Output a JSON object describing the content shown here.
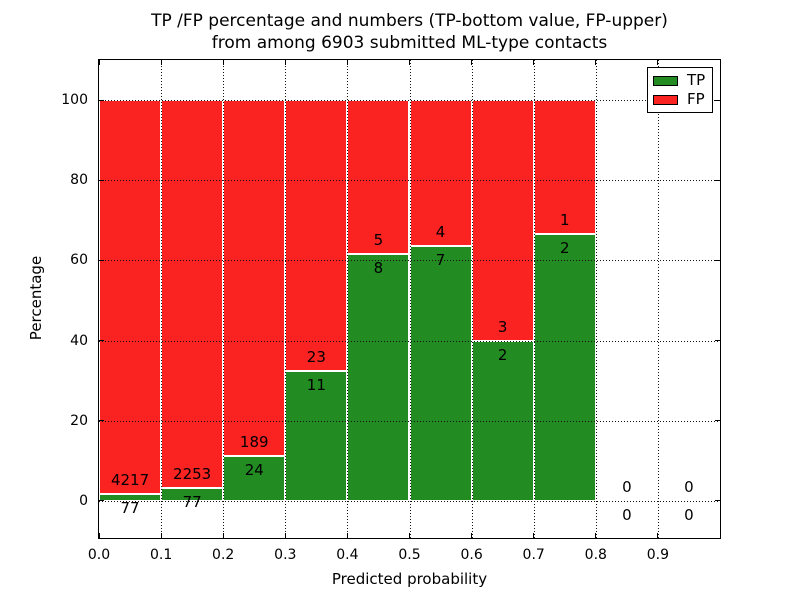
{
  "figure": {
    "title_line1": "TP /FP percentage and numbers (TP-bottom value, FP-upper)",
    "title_line2": "from among 6903 submitted ML-type contacts",
    "xlabel": "Predicted probability",
    "ylabel": "Percentage"
  },
  "legend": {
    "position": "upper right",
    "items": [
      {
        "label": "TP",
        "color": "#228B22"
      },
      {
        "label": "FP",
        "color": "#FB2222"
      }
    ]
  },
  "colors": {
    "tp": "#228B22",
    "fp": "#FB2222",
    "bar_edge": "#ffffff",
    "grid": "#111111",
    "spine": "#000000",
    "background": "#ffffff",
    "text": "#000000"
  },
  "chart_data": {
    "type": "bar",
    "stacking": "percentage-stacked-histogram",
    "title": "TP /FP percentage and numbers (TP-bottom value, FP-upper) from among 6903 submitted ML-type contacts",
    "xlabel": "Predicted probability",
    "ylabel": "Percentage",
    "x_tick_labels": [
      "0.0",
      "0.1",
      "0.2",
      "0.3",
      "0.4",
      "0.5",
      "0.6",
      "0.7",
      "0.8",
      "0.9"
    ],
    "y_ticks": [
      0,
      20,
      40,
      60,
      80,
      100
    ],
    "xlim": [
      0.0,
      1.0
    ],
    "ylim": [
      -9.25,
      110
    ],
    "grid": "dotted both axes, drawn over bars",
    "legend_position": "upper right",
    "bin_width": 0.1,
    "annotation_rule": "FP count printed above green-bar top, TP count printed below it",
    "total_contacts": 6903,
    "bins": [
      {
        "x_start": 0.0,
        "x_end": 0.1,
        "tp": 77,
        "fp": 4217,
        "tp_pct": 1.79
      },
      {
        "x_start": 0.1,
        "x_end": 0.2,
        "tp": 77,
        "fp": 2253,
        "tp_pct": 3.3
      },
      {
        "x_start": 0.2,
        "x_end": 0.3,
        "tp": 24,
        "fp": 189,
        "tp_pct": 11.27
      },
      {
        "x_start": 0.3,
        "x_end": 0.4,
        "tp": 11,
        "fp": 23,
        "tp_pct": 32.35
      },
      {
        "x_start": 0.4,
        "x_end": 0.5,
        "tp": 8,
        "fp": 5,
        "tp_pct": 61.54
      },
      {
        "x_start": 0.5,
        "x_end": 0.6,
        "tp": 7,
        "fp": 4,
        "tp_pct": 63.64
      },
      {
        "x_start": 0.6,
        "x_end": 0.7,
        "tp": 2,
        "fp": 3,
        "tp_pct": 40.0
      },
      {
        "x_start": 0.7,
        "x_end": 0.8,
        "tp": 2,
        "fp": 1,
        "tp_pct": 66.67
      },
      {
        "x_start": 0.8,
        "x_end": 0.9,
        "tp": 0,
        "fp": 0,
        "tp_pct": 0
      },
      {
        "x_start": 0.9,
        "x_end": 1.0,
        "tp": 0,
        "fp": 0,
        "tp_pct": 0
      }
    ],
    "series": [
      {
        "name": "TP",
        "color": "#228B22",
        "values": [
          77,
          77,
          24,
          11,
          8,
          7,
          2,
          2,
          0,
          0
        ]
      },
      {
        "name": "FP",
        "color": "#FB2222",
        "values": [
          4217,
          2253,
          189,
          23,
          5,
          4,
          3,
          1,
          0,
          0
        ]
      }
    ]
  }
}
